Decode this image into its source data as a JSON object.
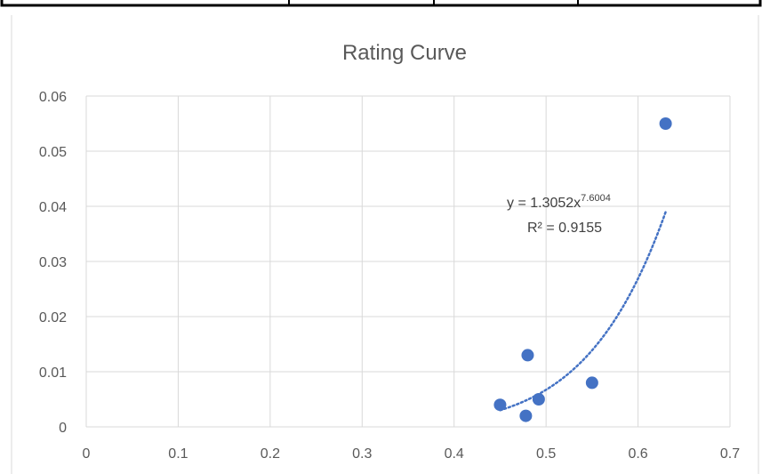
{
  "chart_data": {
    "type": "scatter",
    "title": "Rating Curve",
    "xlabel": "",
    "ylabel": "",
    "xlim": [
      0,
      0.7
    ],
    "ylim": [
      0,
      0.06
    ],
    "x_ticks": [
      "0",
      "0.1",
      "0.2",
      "0.3",
      "0.4",
      "0.5",
      "0.6",
      "0.7"
    ],
    "y_ticks": [
      "0",
      "0.01",
      "0.02",
      "0.03",
      "0.04",
      "0.05",
      "0.06"
    ],
    "grid": true,
    "legend": "none",
    "series": [
      {
        "points": [
          {
            "x": 0.45,
            "y": 0.004
          },
          {
            "x": 0.478,
            "y": 0.002
          },
          {
            "x": 0.48,
            "y": 0.013
          },
          {
            "x": 0.492,
            "y": 0.005
          },
          {
            "x": 0.55,
            "y": 0.008
          },
          {
            "x": 0.63,
            "y": 0.055
          }
        ],
        "color": "#4472C4"
      }
    ],
    "trendline": {
      "type": "power",
      "a": 1.3052,
      "b": 7.6004,
      "x_range": [
        0.45,
        0.63
      ],
      "color": "#4472C4",
      "equation_prefix": "y = 1.3052x",
      "equation_exponent": "7.6004",
      "r_squared": "R² = 0.9155"
    }
  },
  "colors": {
    "grid": "#d9d9d9",
    "table_border": "#000000"
  }
}
